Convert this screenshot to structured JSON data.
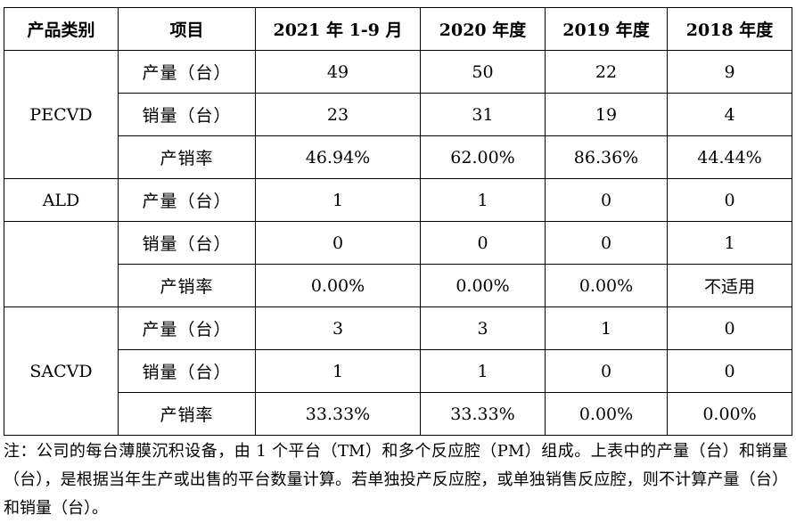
{
  "table": {
    "headers": [
      "产品类别",
      "项目",
      "2021 年 1-9 月",
      "2020 年度",
      "2019 年度",
      "2018 年度"
    ],
    "groups": [
      {
        "category": "PECVD",
        "rows": [
          {
            "item": "产量（台）",
            "values": [
              "49",
              "50",
              "22",
              "9"
            ]
          },
          {
            "item": "销量（台）",
            "values": [
              "23",
              "31",
              "19",
              "4"
            ]
          },
          {
            "item": "产销率",
            "values": [
              "46.94%",
              "62.00%",
              "86.36%",
              "44.44%"
            ]
          }
        ]
      },
      {
        "category": "ALD",
        "rows": [
          {
            "item": "产量（台）",
            "values": [
              "1",
              "1",
              "0",
              "0"
            ]
          },
          {
            "item": "销量（台）",
            "values": [
              "0",
              "0",
              "0",
              "1"
            ]
          },
          {
            "item": "产销率",
            "values": [
              "0.00%",
              "0.00%",
              "0.00%",
              "不适用"
            ]
          }
        ]
      },
      {
        "category": "SACVD",
        "rows": [
          {
            "item": "产量（台）",
            "values": [
              "3",
              "3",
              "1",
              "0"
            ]
          },
          {
            "item": "销量（台）",
            "values": [
              "1",
              "1",
              "0",
              "0"
            ]
          },
          {
            "item": "产销率",
            "values": [
              "33.33%",
              "33.33%",
              "0.00%",
              "0.00%"
            ]
          }
        ]
      }
    ]
  },
  "note": "注：公司的每台薄膜沉积设备，由 1 个平台（TM）和多个反应腔（PM）组成。上表中的产量（台）和销量（台），是根据当年生产或出售的平台数量计算。若单独投产反应腔，或单独销售反应腔，则不计算产量（台）和销量（台）。"
}
